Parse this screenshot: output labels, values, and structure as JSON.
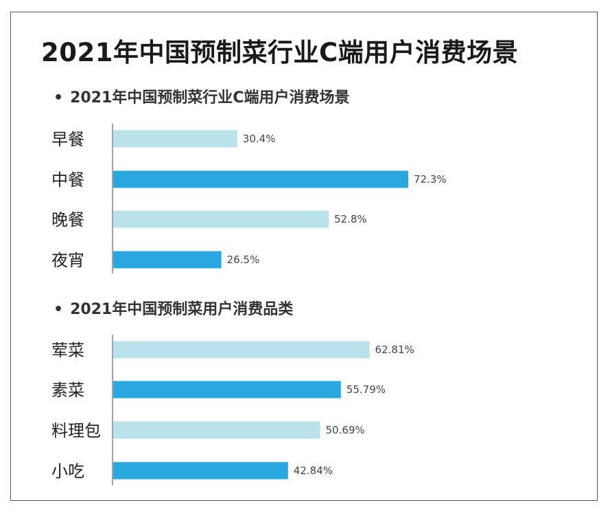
{
  "title": "2021年中国预制菜行业C端用户消费场景",
  "colors": {
    "light": "#b9e2ea",
    "dark": "#29a8e0",
    "axis": "#666666"
  },
  "chart_data": [
    {
      "type": "bar",
      "orientation": "horizontal",
      "title": "2021年中国预制菜行业C端用户消费场景",
      "bullet": "•",
      "categories": [
        "早餐",
        "中餐",
        "晚餐",
        "夜宵"
      ],
      "values": [
        30.4,
        72.3,
        52.8,
        26.5
      ],
      "value_labels": [
        "30.4%",
        "72.3%",
        "52.8%",
        "26.5%"
      ],
      "unit": "%",
      "xlim": [
        0,
        100
      ]
    },
    {
      "type": "bar",
      "orientation": "horizontal",
      "title": "2021年中国预制菜用户消费品类",
      "bullet": "•",
      "categories": [
        "荤菜",
        "素菜",
        "料理包",
        "小吃"
      ],
      "values": [
        62.81,
        55.79,
        50.69,
        42.84
      ],
      "value_labels": [
        "62.81%",
        "55.79%",
        "50.69%",
        "42.84%"
      ],
      "unit": "%",
      "xlim": [
        0,
        100
      ]
    }
  ]
}
